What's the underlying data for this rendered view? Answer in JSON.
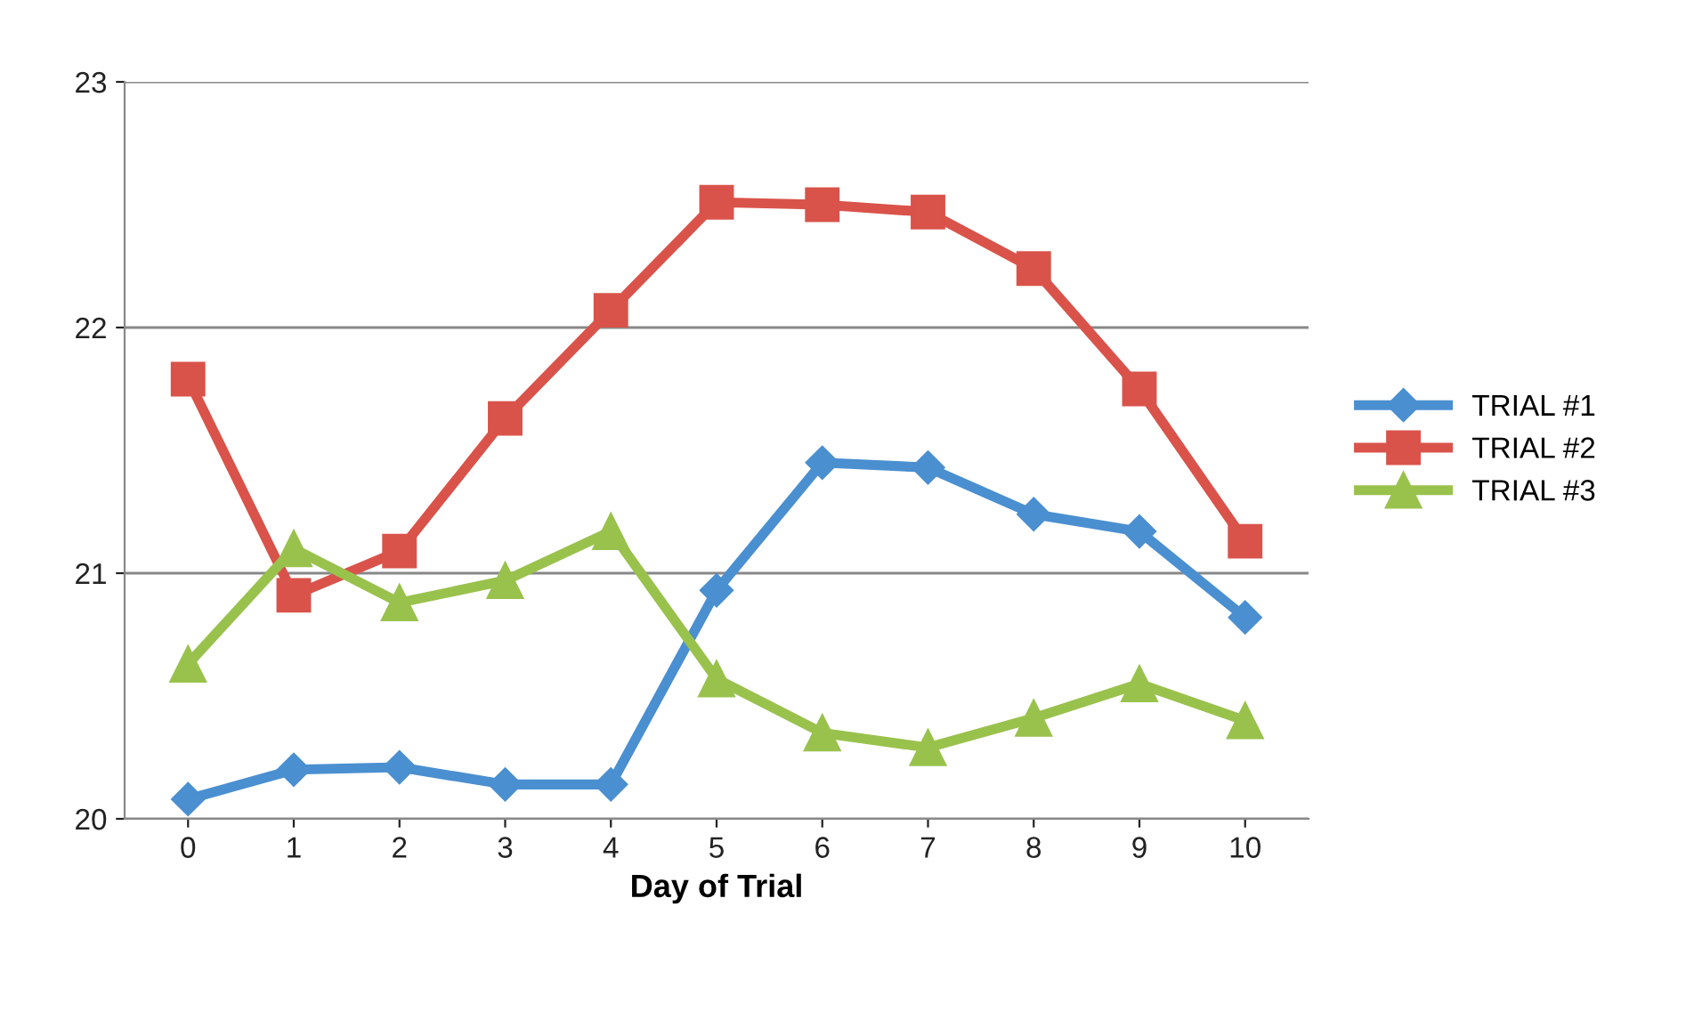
{
  "chart_data": {
    "type": "line",
    "xlabel": "Day of Trial",
    "categories": [
      "0",
      "1",
      "2",
      "3",
      "4",
      "5",
      "6",
      "7",
      "8",
      "9",
      "10"
    ],
    "series": [
      {
        "name": "TRIAL #1",
        "color": "#4a8fd0",
        "marker": "diamond",
        "values": [
          20.08,
          20.2,
          20.21,
          20.14,
          20.14,
          20.93,
          21.45,
          21.43,
          21.24,
          21.17,
          20.82
        ]
      },
      {
        "name": "TRIAL #2",
        "color": "#d9534a",
        "marker": "square",
        "values": [
          21.79,
          20.91,
          21.09,
          21.63,
          22.07,
          22.51,
          22.5,
          22.47,
          22.24,
          21.75,
          21.13
        ]
      },
      {
        "name": "TRIAL #3",
        "color": "#99c24d",
        "marker": "triangle",
        "values": [
          20.63,
          21.1,
          20.88,
          20.97,
          21.17,
          20.57,
          20.35,
          20.29,
          20.41,
          20.55,
          20.4
        ]
      }
    ],
    "ylim": [
      20,
      23
    ],
    "yticks": [
      20,
      21,
      22,
      23
    ],
    "grid": "y",
    "legend": "right",
    "line_style": "solid"
  }
}
